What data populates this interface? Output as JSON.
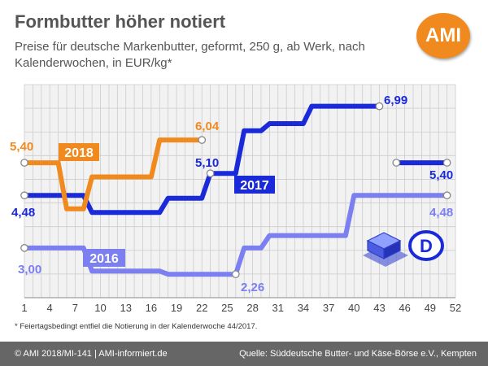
{
  "header": {
    "title": "Formbutter höher notiert",
    "subtitle": "Preise für deutsche Markenbutter, geformt, 250 g, ab Werk, nach Kalenderwochen, in EUR/kg*"
  },
  "logo": {
    "text": "AMI",
    "color": "#f08a1e"
  },
  "footnote": "* Feiertagsbedingt entfiel die Notierung in der Kalenderwoche 44/2017.",
  "footer": {
    "left": "© AMI 2018/MI-141 | AMI-informiert.de",
    "right": "Quelle: Süddeutsche Butter- und Käse-Börse e.V., Kempten"
  },
  "badge": {
    "icon": "butter-package-icon",
    "country_letter": "D"
  },
  "chart_data": {
    "type": "line",
    "title": "Formbutter höher notiert",
    "xlabel": "",
    "ylabel": "",
    "xlim": [
      1,
      52
    ],
    "ylim": [
      1.6,
      7.6
    ],
    "xticks": [
      1,
      4,
      7,
      10,
      13,
      16,
      19,
      22,
      25,
      28,
      31,
      34,
      37,
      40,
      43,
      46,
      49,
      52
    ],
    "grid": true,
    "legend": "inline-labels",
    "series": [
      {
        "name": "2016",
        "color": "#7b7ff0",
        "x": [
          1,
          8,
          9,
          17,
          18,
          26,
          27,
          29,
          30,
          39,
          40,
          51
        ],
        "y": [
          3.0,
          3.0,
          2.35,
          2.35,
          2.26,
          2.26,
          3.0,
          3.0,
          3.35,
          3.35,
          4.48,
          4.48
        ]
      },
      {
        "name": "2017",
        "color": "#1a2ad8",
        "x": [
          1,
          8,
          9,
          17,
          18,
          22,
          23,
          26,
          27,
          29,
          30,
          34,
          35,
          43
        ],
        "y": [
          4.48,
          4.48,
          4.0,
          4.0,
          4.4,
          4.4,
          5.1,
          5.1,
          6.3,
          6.3,
          6.5,
          6.5,
          6.99,
          6.99
        ]
      },
      {
        "name": "2017",
        "color": "#1a2ad8",
        "x": [
          45,
          51
        ],
        "y": [
          5.4,
          5.4
        ]
      },
      {
        "name": "2018",
        "color": "#f08a1e",
        "x": [
          1,
          5,
          6,
          8,
          9,
          16,
          17,
          22
        ],
        "y": [
          5.4,
          5.4,
          4.1,
          4.1,
          5.0,
          5.0,
          6.04,
          6.04
        ]
      }
    ],
    "data_labels": [
      {
        "text": "5,40",
        "color": "#f08a1e"
      },
      {
        "text": "6,04",
        "color": "#f08a1e"
      },
      {
        "text": "4,48",
        "color": "#1a2ad8"
      },
      {
        "text": "5,10",
        "color": "#1a2ad8"
      },
      {
        "text": "6,99",
        "color": "#1a2ad8"
      },
      {
        "text": "5,40",
        "color": "#1a2ad8"
      },
      {
        "text": "3,00",
        "color": "#7b7ff0"
      },
      {
        "text": "2,26",
        "color": "#7b7ff0"
      },
      {
        "text": "4,48",
        "color": "#7b7ff0"
      }
    ],
    "year_labels": [
      {
        "text": "2018",
        "color": "#f08a1e"
      },
      {
        "text": "2017",
        "color": "#1a2ad8"
      },
      {
        "text": "2016",
        "color": "#7b7ff0"
      }
    ]
  }
}
